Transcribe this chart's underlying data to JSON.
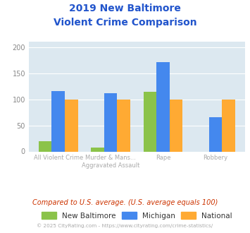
{
  "title_line1": "2019 New Baltimore",
  "title_line2": "Violent Crime Comparison",
  "x_labels_line1": [
    "All Violent Crime",
    "Murder & Mans...",
    "Rape",
    "Robbery"
  ],
  "x_labels_line2": [
    "",
    "Aggravated Assault",
    "",
    ""
  ],
  "new_baltimore": [
    19,
    7,
    114,
    0
  ],
  "michigan": [
    116,
    112,
    171,
    65
  ],
  "national": [
    100,
    100,
    100,
    100
  ],
  "colors": {
    "new_baltimore": "#8bc34a",
    "michigan": "#4488ee",
    "national": "#ffaa33"
  },
  "ylim": [
    0,
    210
  ],
  "yticks": [
    0,
    50,
    100,
    150,
    200
  ],
  "title_color": "#2255cc",
  "plot_bg": "#dce8f0",
  "footer_text": "Compared to U.S. average. (U.S. average equals 100)",
  "credit_text": "© 2025 CityRating.com - https://www.cityrating.com/crime-statistics/",
  "legend_labels": [
    "New Baltimore",
    "Michigan",
    "National"
  ],
  "bar_width": 0.25
}
